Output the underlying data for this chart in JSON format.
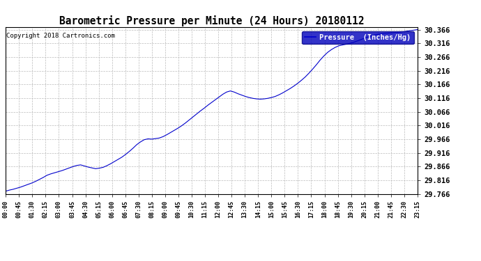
{
  "title": "Barometric Pressure per Minute (24 Hours) 20180112",
  "copyright_text": "Copyright 2018 Cartronics.com",
  "legend_text": "Pressure  (Inches/Hg)",
  "line_color": "#0000CC",
  "background_color": "#ffffff",
  "grid_color": "#bbbbbb",
  "ytick_min": 29.766,
  "ytick_max": 30.366,
  "ytick_step": 0.05,
  "x_labels": [
    "00:00",
    "00:45",
    "01:30",
    "02:15",
    "03:00",
    "03:45",
    "04:30",
    "05:15",
    "06:00",
    "06:45",
    "07:30",
    "08:15",
    "09:00",
    "09:45",
    "10:30",
    "11:15",
    "12:00",
    "12:45",
    "13:30",
    "14:15",
    "15:00",
    "15:45",
    "16:30",
    "17:15",
    "18:00",
    "18:45",
    "19:30",
    "20:15",
    "21:00",
    "21:45",
    "22:30",
    "23:15"
  ],
  "pressure_data": [
    29.776,
    29.78,
    29.783,
    29.787,
    29.791,
    29.796,
    29.801,
    29.806,
    29.812,
    29.819,
    29.826,
    29.834,
    29.839,
    29.843,
    29.847,
    29.851,
    29.856,
    29.861,
    29.866,
    29.87,
    29.872,
    29.868,
    29.864,
    29.861,
    29.858,
    29.86,
    29.863,
    29.869,
    29.876,
    29.884,
    29.892,
    29.9,
    29.91,
    29.921,
    29.933,
    29.946,
    29.956,
    29.964,
    29.967,
    29.966,
    29.968,
    29.97,
    29.975,
    29.982,
    29.99,
    29.998,
    30.006,
    30.015,
    30.025,
    30.036,
    30.047,
    30.058,
    30.069,
    30.079,
    30.09,
    30.1,
    30.11,
    30.12,
    30.13,
    30.138,
    30.142,
    30.138,
    30.132,
    30.127,
    30.122,
    30.118,
    30.115,
    30.113,
    30.112,
    30.113,
    30.115,
    30.118,
    30.122,
    30.128,
    30.135,
    30.143,
    30.151,
    30.16,
    30.17,
    30.181,
    30.193,
    30.207,
    30.222,
    30.238,
    30.255,
    30.27,
    30.283,
    30.293,
    30.301,
    30.307,
    30.31,
    30.313,
    30.316,
    30.32,
    30.325,
    30.33,
    30.336,
    30.34,
    30.344,
    30.348,
    30.35,
    30.352,
    30.353,
    30.354,
    30.355,
    30.356,
    30.358,
    30.36,
    30.362,
    30.364,
    30.366
  ]
}
